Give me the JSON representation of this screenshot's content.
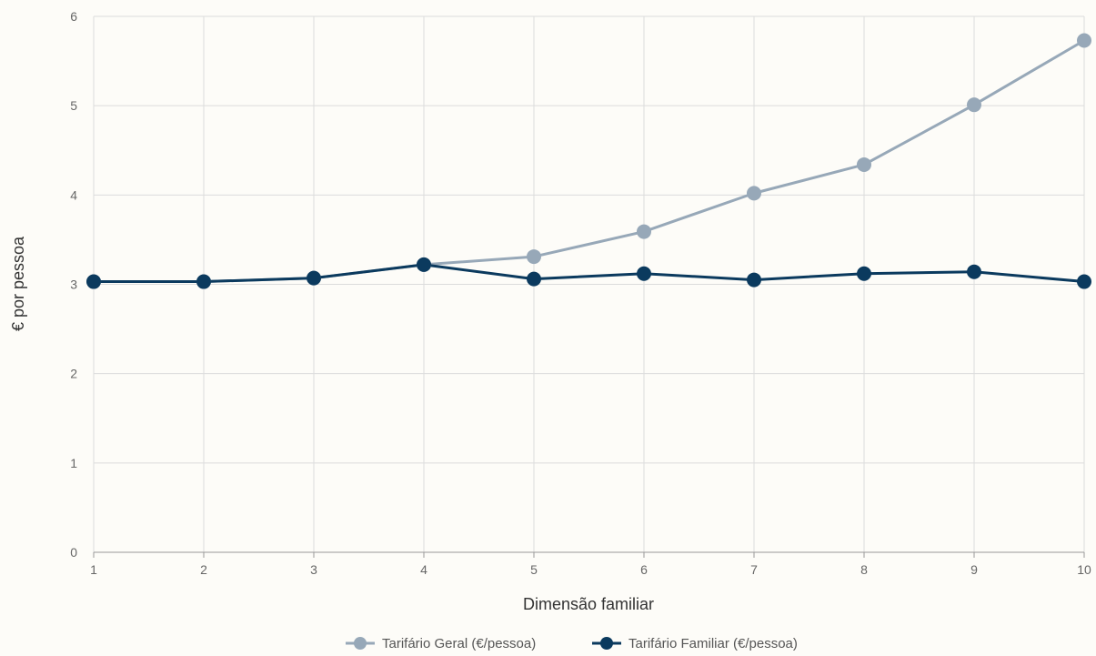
{
  "chart_data": {
    "type": "line",
    "title": "",
    "xlabel": "Dimensão familiar",
    "ylabel": "€ por pessoa",
    "x": [
      1,
      2,
      3,
      4,
      5,
      6,
      7,
      8,
      9,
      10
    ],
    "x_tick_labels": [
      "1",
      "2",
      "3",
      "4",
      "5",
      "6",
      "7",
      "8",
      "9",
      "10"
    ],
    "ylim": [
      0,
      6
    ],
    "y_tick_labels": [
      "0",
      "1",
      "2",
      "3",
      "4",
      "5",
      "6"
    ],
    "grid": true,
    "legend_position": "bottom",
    "series": [
      {
        "name": "Tarifário Geral (€/pessoa)",
        "color": "#97a8b8",
        "values": [
          3.03,
          3.03,
          3.07,
          3.22,
          3.31,
          3.59,
          4.02,
          4.34,
          5.01,
          5.73
        ]
      },
      {
        "name": "Tarifário Familiar (€/pessoa)",
        "color": "#0b3a5e",
        "values": [
          3.03,
          3.03,
          3.07,
          3.22,
          3.06,
          3.12,
          3.05,
          3.12,
          3.14,
          3.03
        ]
      }
    ]
  }
}
